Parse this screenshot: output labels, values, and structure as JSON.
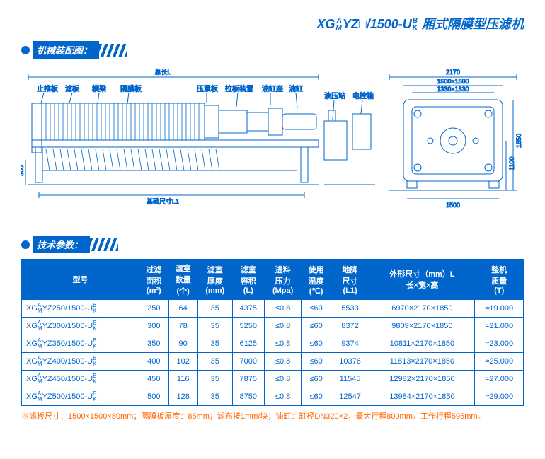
{
  "title": {
    "prefix": "XG",
    "stack1_top": "A",
    "stack1_bot": "M",
    "mid1": "YZ□/1500-U",
    "stack2_top": "B",
    "stack2_bot": "K",
    "suffix": " 厢式隔膜型压滤机"
  },
  "sections": {
    "diagram": "机械装配图：",
    "specs": "技术参数："
  },
  "diagram": {
    "labels": {
      "total_length": "总长L",
      "stop_plate": "止推板",
      "filter_plate": "滤板",
      "beam": "横梁",
      "membrane": "隔膜板",
      "press_plate": "压紧板",
      "pull_device": "拉板装置",
      "cyl_seat": "油缸座",
      "cylinder": "油缸",
      "hyd_station": "液压站",
      "control_box": "电控箱",
      "base_dim": "基础尺寸L1",
      "height_360": "360",
      "width_2170": "2170",
      "dim_1500x1500": "1500×1500",
      "dim_1330x1330": "1330×1330",
      "h_1850": "1850",
      "h_1100": "1100",
      "w_1500": "1500"
    },
    "colors": {
      "line": "#0066cc",
      "thin": "#0066cc"
    }
  },
  "table": {
    "headers": {
      "model": "型号",
      "area": "过滤\n面积",
      "area_unit": "(m²)",
      "count": "滤室\n数量",
      "count_unit": "(个)",
      "thick": "滤室\n厚度",
      "thick_unit": "(mm)",
      "volume": "滤室\n容积",
      "volume_unit": "(L)",
      "pressure": "进料\n压力",
      "pressure_unit": "(Mpa)",
      "temp": "使用\n温度",
      "temp_unit": "(℃)",
      "foot": "地脚\n尺寸",
      "foot_unit": "(L1)",
      "outer": "外形尺寸（mm）L",
      "outer_sub": "长×宽×高",
      "weight": "整机\n质量",
      "weight_unit": "(T)"
    },
    "rows": [
      {
        "model_mid": "YZ250/1500-U",
        "area": "250",
        "count": "64",
        "thick": "35",
        "vol": "4375",
        "press": "≤0.8",
        "temp": "≤60",
        "foot": "5533",
        "outer": "6970×2170×1850",
        "wt": "≈19.000"
      },
      {
        "model_mid": "YZ300/1500-U",
        "area": "300",
        "count": "78",
        "thick": "35",
        "vol": "5250",
        "press": "≤0.8",
        "temp": "≤60",
        "foot": "8372",
        "outer": "9809×2170×1850",
        "wt": "≈21.000"
      },
      {
        "model_mid": "YZ350/1500-U",
        "area": "350",
        "count": "90",
        "thick": "35",
        "vol": "6125",
        "press": "≤0.8",
        "temp": "≤60",
        "foot": "9374",
        "outer": "10811×2170×1850",
        "wt": "≈23.000"
      },
      {
        "model_mid": "YZ400/1500-U",
        "area": "400",
        "count": "102",
        "thick": "35",
        "vol": "7000",
        "press": "≤0.8",
        "temp": "≤60",
        "foot": "10376",
        "outer": "11813×2170×1850",
        "wt": "≈25.000"
      },
      {
        "model_mid": "YZ450/1500-U",
        "area": "450",
        "count": "116",
        "thick": "35",
        "vol": "7875",
        "press": "≤0.8",
        "temp": "≤60",
        "foot": "11545",
        "outer": "12982×2170×1850",
        "wt": "≈27.000"
      },
      {
        "model_mid": "YZ500/1500-U",
        "area": "500",
        "count": "128",
        "thick": "35",
        "vol": "8750",
        "press": "≤0.8",
        "temp": "≤60",
        "foot": "12547",
        "outer": "13984×2170×1850",
        "wt": "≈29.000"
      }
    ]
  },
  "footnote": "※滤板尺寸：1500×1500×80mm；隔膜板厚度：85mm；滤布按1mm/块；油缸：缸径DN320×2，最大行程800mm，工作行程595mm。"
}
